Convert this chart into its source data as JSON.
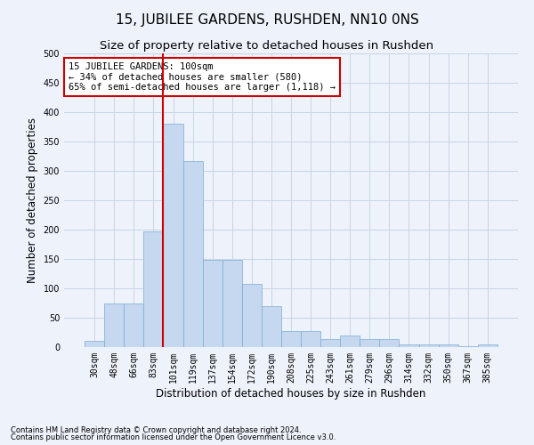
{
  "title": "15, JUBILEE GARDENS, RUSHDEN, NN10 0NS",
  "subtitle": "Size of property relative to detached houses in Rushden",
  "xlabel": "Distribution of detached houses by size in Rushden",
  "ylabel": "Number of detached properties",
  "footnote1": "Contains HM Land Registry data © Crown copyright and database right 2024.",
  "footnote2": "Contains public sector information licensed under the Open Government Licence v3.0.",
  "categories": [
    "30sqm",
    "48sqm",
    "66sqm",
    "83sqm",
    "101sqm",
    "119sqm",
    "137sqm",
    "154sqm",
    "172sqm",
    "190sqm",
    "208sqm",
    "225sqm",
    "243sqm",
    "261sqm",
    "279sqm",
    "296sqm",
    "314sqm",
    "332sqm",
    "350sqm",
    "367sqm",
    "385sqm"
  ],
  "values": [
    10,
    75,
    75,
    197,
    380,
    317,
    148,
    148,
    108,
    70,
    28,
    28,
    14,
    20,
    13,
    13,
    5,
    5,
    5,
    2,
    4
  ],
  "bar_color": "#c5d8ef",
  "bar_edge_color": "#7aadd4",
  "grid_color": "#c8d4e8",
  "annotation_box_color": "#cc0000",
  "annotation_text": "15 JUBILEE GARDENS: 100sqm\n← 34% of detached houses are smaller (580)\n65% of semi-detached houses are larger (1,118) →",
  "property_line_x": 3.5,
  "ylim": [
    0,
    500
  ],
  "yticks": [
    0,
    50,
    100,
    150,
    200,
    250,
    300,
    350,
    400,
    450,
    500
  ],
  "background_color": "#eef2fa",
  "title_fontsize": 11,
  "subtitle_fontsize": 9.5,
  "axis_label_fontsize": 8.5,
  "tick_fontsize": 7,
  "annotation_fontsize": 7.5
}
